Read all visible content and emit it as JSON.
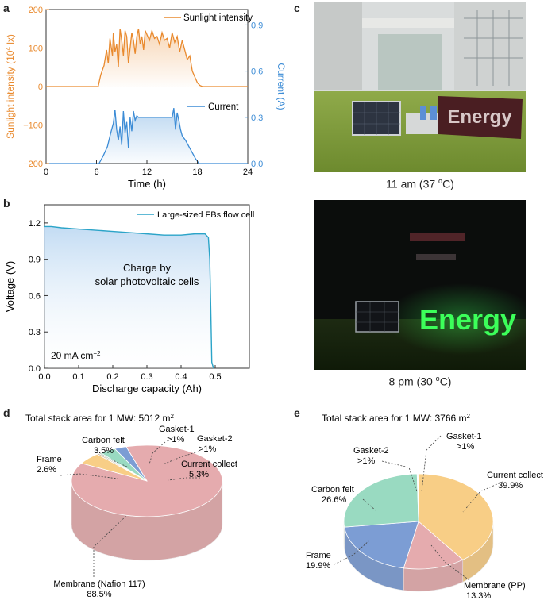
{
  "panels": {
    "a": {
      "letter": "a"
    },
    "b": {
      "letter": "b"
    },
    "c": {
      "letter": "c",
      "caption_day": "11 am (37 ",
      "caption_day_tail": "C)",
      "caption_night": "8 pm (30 ",
      "caption_night_tail": "C)",
      "sign_text": "Energy",
      "degree_mark": "o"
    },
    "d": {
      "letter": "d"
    },
    "e": {
      "letter": "e"
    }
  },
  "colors": {
    "orange": "#E98A2E",
    "blue": "#3C8CD6",
    "cyan": "#2BA4C8",
    "membrane_red": "#E3A3A6",
    "carbon_green": "#8ED6BB",
    "current_orange": "#F8C97A",
    "frame_blue": "#6E93D0",
    "led_green": "#3CFF5A"
  },
  "chart_data": [
    {
      "id": "a",
      "type": "line",
      "xlabel": "Time (h)",
      "ylabel_left": "Sunlight intensity (10",
      "ylabel_left_sup": "4",
      "ylabel_left_tail": " lx)",
      "ylabel_right": "Current (A)",
      "xlim": [
        0,
        24
      ],
      "xticks": [
        "0",
        "6",
        "12",
        "18",
        "24"
      ],
      "ylim_left": [
        -200,
        200
      ],
      "yticks_left": [
        "200",
        "100",
        "0",
        "−100",
        "−200"
      ],
      "ylim_right": [
        0,
        1.0
      ],
      "yticks_right": [
        "0.9",
        "0.6",
        "0.3",
        "0.0"
      ],
      "series": [
        {
          "name": "Sunlight intensity",
          "axis": "left",
          "x": [
            0,
            6.2,
            6.5,
            6.9,
            7.2,
            7.4,
            7.6,
            7.9,
            8.0,
            8.2,
            8.4,
            8.6,
            8.8,
            9.0,
            9.2,
            9.4,
            9.6,
            9.8,
            10.0,
            10.2,
            10.4,
            10.6,
            10.8,
            11.0,
            11.2,
            11.4,
            11.6,
            11.8,
            12.0,
            12.3,
            12.6,
            12.9,
            13.2,
            13.5,
            13.8,
            14.1,
            14.4,
            14.7,
            15.0,
            15.3,
            15.6,
            15.9,
            16.2,
            16.5,
            16.8,
            17.1,
            17.4,
            17.7,
            18.0,
            18.3,
            18.6,
            24
          ],
          "y": [
            0,
            0,
            30,
            55,
            95,
            60,
            125,
            80,
            140,
            90,
            110,
            50,
            150,
            120,
            80,
            145,
            130,
            60,
            100,
            140,
            120,
            85,
            130,
            150,
            110,
            130,
            95,
            145,
            135,
            120,
            145,
            125,
            130,
            110,
            140,
            120,
            125,
            100,
            140,
            115,
            130,
            90,
            120,
            95,
            70,
            80,
            40,
            25,
            10,
            3,
            0,
            0
          ]
        },
        {
          "name": "Current",
          "axis": "right",
          "x": [
            0,
            6.3,
            6.8,
            7.3,
            7.7,
            8.0,
            8.2,
            8.4,
            8.6,
            8.8,
            9.0,
            9.2,
            9.4,
            9.6,
            9.8,
            10.0,
            10.2,
            10.4,
            10.6,
            10.8,
            11.0,
            11.5,
            12.0,
            12.5,
            13.0,
            13.5,
            14.0,
            14.5,
            15.0,
            15.2,
            15.4,
            15.6,
            15.8,
            16.0,
            16.2,
            16.6,
            17.0,
            17.4,
            17.8,
            18.2,
            24
          ],
          "y": [
            0,
            0,
            0.05,
            0.11,
            0.2,
            0.26,
            0.35,
            0.22,
            0.15,
            0.24,
            0.12,
            0.34,
            0.2,
            0.27,
            0.1,
            0.3,
            0.21,
            0.34,
            0.28,
            0.31,
            0.3,
            0.3,
            0.3,
            0.3,
            0.3,
            0.3,
            0.3,
            0.3,
            0.3,
            0.36,
            0.22,
            0.33,
            0.28,
            0.22,
            0.18,
            0.15,
            0.11,
            0.07,
            0.03,
            0.0,
            0.0
          ]
        }
      ]
    },
    {
      "id": "b",
      "type": "area",
      "xlabel": "Discharge capacity (Ah)",
      "ylabel": "Voltage (V)",
      "xlim": [
        0,
        0.6
      ],
      "xticks": [
        "0.0",
        "0.1",
        "0.2",
        "0.3",
        "0.4",
        "0.5"
      ],
      "ylim": [
        0,
        1.35
      ],
      "yticks": [
        "0.0",
        "0.3",
        "0.6",
        "0.9",
        "1.2"
      ],
      "legend": "Large-sized FBs flow cell",
      "annotation_line1": "Charge by",
      "annotation_line2": "solar photovoltaic cells",
      "current_label": "20 mA cm",
      "current_label_sup": "−2",
      "series": [
        {
          "name": "Large-sized FBs flow cell",
          "x": [
            0,
            0.02,
            0.05,
            0.1,
            0.15,
            0.2,
            0.25,
            0.3,
            0.35,
            0.4,
            0.44,
            0.47,
            0.48,
            0.484,
            0.487,
            0.49,
            0.495
          ],
          "y": [
            1.17,
            1.17,
            1.16,
            1.15,
            1.14,
            1.13,
            1.12,
            1.11,
            1.1,
            1.1,
            1.11,
            1.11,
            1.08,
            0.9,
            0.5,
            0.05,
            0.0
          ]
        }
      ]
    },
    {
      "id": "d",
      "type": "pie",
      "title": "Total stack area for 1 MW: 5012 m",
      "title_sup": "2",
      "slices": [
        {
          "label": "Membrane (Nafion 117)",
          "value": 88.5,
          "value_label": "88.5%",
          "color": "#E3A3A6"
        },
        {
          "label": "Current collect",
          "value": 5.3,
          "value_label": "5.3%",
          "color": "#F8C97A"
        },
        {
          "label": "Gasket-2",
          "value": 0.5,
          "value_label": ">1%",
          "color": "#C9B59A"
        },
        {
          "label": "Gasket-1",
          "value": 0.5,
          "value_label": ">1%",
          "color": "#A9C6B6"
        },
        {
          "label": "Carbon felt",
          "value": 3.5,
          "value_label": "3.5%",
          "color": "#8ED6BB"
        },
        {
          "label": "Frame",
          "value": 2.6,
          "value_label": "2.6%",
          "color": "#6E93D0"
        }
      ]
    },
    {
      "id": "e",
      "type": "pie",
      "title": "Total stack area for 1 MW: 3766 m",
      "title_sup": "2",
      "slices": [
        {
          "label": "Current collect",
          "value": 39.9,
          "value_label": "39.9%",
          "color": "#F8C97A"
        },
        {
          "label": "Membrane (PP)",
          "value": 13.3,
          "value_label": "13.3%",
          "color": "#E3A3A6"
        },
        {
          "label": "Frame",
          "value": 19.9,
          "value_label": "19.9%",
          "color": "#6E93D0"
        },
        {
          "label": "Carbon felt",
          "value": 26.6,
          "value_label": "26.6%",
          "color": "#8ED6BB"
        },
        {
          "label": "Gasket-2",
          "value": 0.15,
          "value_label": ">1%",
          "color": "#C9B59A"
        },
        {
          "label": "Gasket-1",
          "value": 0.15,
          "value_label": ">1%",
          "color": "#A9C6B6"
        }
      ]
    }
  ]
}
